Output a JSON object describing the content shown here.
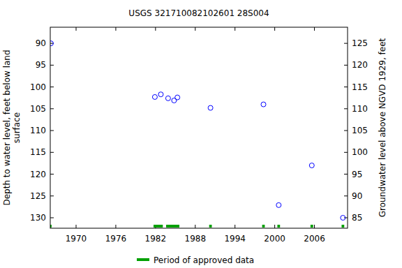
{
  "chart_data": {
    "type": "scatter",
    "title": "USGS 321710082102601 28S004",
    "y_label": [
      "Depth to water level, feet below land",
      "surface"
    ],
    "y2_label": "Groundwater level above NGVD 1929, feet",
    "xlim": [
      1966.1,
      2011
    ],
    "xticks": [
      1970,
      1976,
      1982,
      1988,
      1994,
      2000,
      2006
    ],
    "ylim": [
      132.4,
      86.3
    ],
    "yticks": [
      90,
      95,
      100,
      105,
      110,
      115,
      120,
      125,
      130
    ],
    "y2lim": [
      82.6,
      128.7
    ],
    "y2ticks": [
      85,
      90,
      95,
      100,
      105,
      110,
      115,
      120,
      125
    ],
    "series": [
      {
        "name": "Depth to water level",
        "color": "#0000ff",
        "marker": "circle",
        "x": [
          1966.2,
          1981.9,
          1982.8,
          1983.9,
          1984.8,
          1985.3,
          1990.3,
          1998.3,
          2000.6,
          2005.6,
          2010.3
        ],
        "values": [
          90,
          102.3,
          101.7,
          102.6,
          103.1,
          102.4,
          104.8,
          104.0,
          127.1,
          118.0,
          130.0
        ]
      }
    ],
    "approved_periods": {
      "name": "Period of approved data",
      "color": "#00a000",
      "x": [
        [
          1966.0,
          1966.3
        ],
        [
          1981.7,
          1983.1
        ],
        [
          1983.6,
          1985.6
        ],
        [
          1990.1,
          1990.5
        ],
        [
          1998.1,
          1998.5
        ],
        [
          2000.4,
          2000.8
        ],
        [
          2005.4,
          2005.8
        ],
        [
          2010.1,
          2010.5
        ]
      ]
    }
  }
}
